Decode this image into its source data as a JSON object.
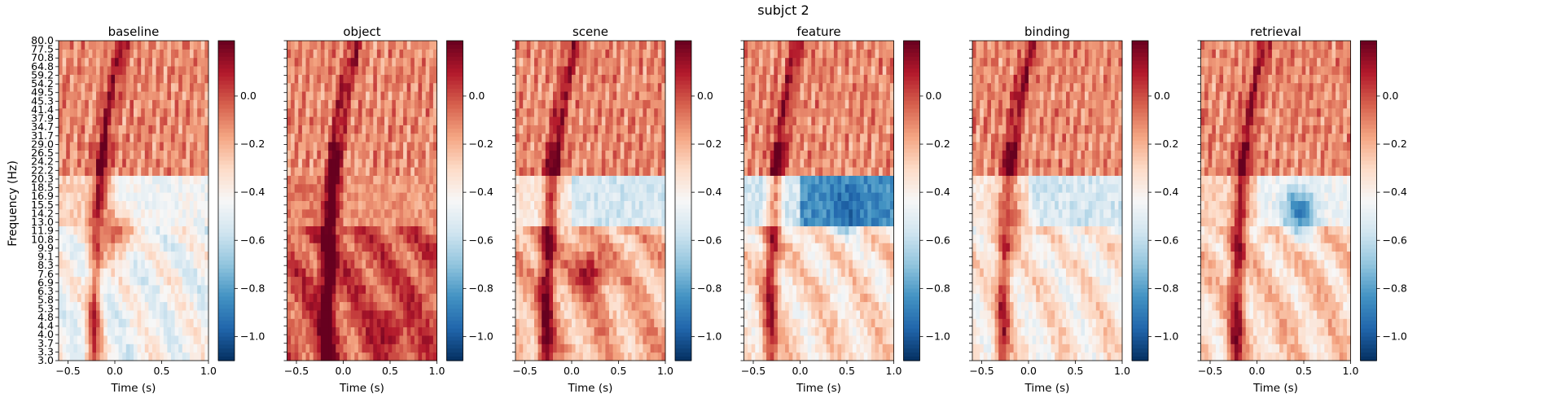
{
  "figure": {
    "suptitle": "subjct 2",
    "ylabel": "Frequency (Hz)",
    "xlabel": "Time (s)"
  },
  "chart_data": {
    "type": "heatmap",
    "colormap": "RdBu_r",
    "colors": {
      "low": "#053061",
      "mid": "#f7f7f7",
      "high": "#67001f"
    },
    "x_range": [
      -0.6,
      1.0
    ],
    "y_range": [
      3.0,
      80.0
    ],
    "x_ticks": [
      -0.5,
      0.0,
      0.5,
      1.0
    ],
    "x_tick_labels": [
      "−0.5",
      "0.0",
      "0.5",
      "1.0"
    ],
    "y_tick_labels": [
      "3.0",
      "3.3",
      "3.7",
      "4.0",
      "4.4",
      "4.8",
      "5.3",
      "5.8",
      "6.3",
      "6.9",
      "7.6",
      "8.3",
      "9.1",
      "9.9",
      "10.8",
      "11.9",
      "13.0",
      "14.2",
      "15.5",
      "16.9",
      "18.5",
      "20.3",
      "22.2",
      "24.2",
      "26.5",
      "29.0",
      "31.7",
      "34.7",
      "37.9",
      "41.4",
      "45.3",
      "49.5",
      "54.2",
      "59.2",
      "64.8",
      "70.8",
      "77.5",
      "80.0"
    ],
    "colorbar": {
      "range": [
        -1.1,
        0.23
      ],
      "ticks": [
        0.0,
        -0.2,
        -0.4,
        -0.6,
        -0.8,
        -1.0
      ],
      "tick_labels": [
        "0.0",
        "−0.2",
        "−0.4",
        "−0.6",
        "−0.8",
        "−1.0"
      ]
    },
    "panels": [
      {
        "title": "baseline",
        "transient_time": -0.2,
        "alpha_level": -0.45,
        "low_level": -0.55,
        "blob": {
          "t": 0.0,
          "f": 11.5,
          "v": -0.05
        }
      },
      {
        "title": "object",
        "transient_time": -0.15,
        "alpha_level": -0.15,
        "low_level": -0.02,
        "blob": {
          "t": 0.45,
          "f": 4.0,
          "v": 0.15
        }
      },
      {
        "title": "scene",
        "transient_time": -0.25,
        "alpha_level": -0.55,
        "low_level": -0.25,
        "blob": {
          "t": 0.18,
          "f": 7.5,
          "v": 0.12
        }
      },
      {
        "title": "feature",
        "transient_time": -0.3,
        "alpha_level": -0.85,
        "low_level": -0.4,
        "blob": {
          "t": 0.5,
          "f": 15.0,
          "v": -0.95
        }
      },
      {
        "title": "binding",
        "transient_time": -0.25,
        "alpha_level": -0.55,
        "low_level": -0.45,
        "blob": {
          "t": -0.2,
          "f": 13.0,
          "v": -0.05
        }
      },
      {
        "title": "retrieval",
        "transient_time": -0.2,
        "alpha_level": -0.45,
        "low_level": -0.35,
        "blob": {
          "t": 0.45,
          "f": 14.5,
          "v": -0.9
        }
      }
    ]
  }
}
